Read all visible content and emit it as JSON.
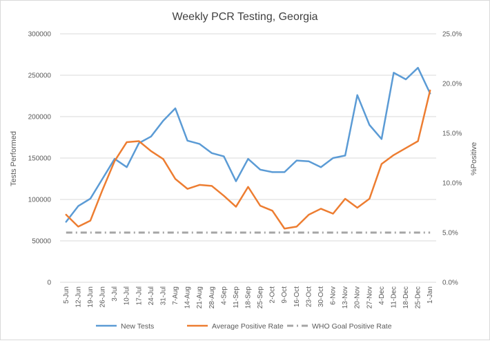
{
  "chart_data": {
    "type": "line",
    "title": "Weekly PCR Testing, Georgia",
    "xlabel": "",
    "ylabel": "Tests Performed",
    "y2label": "%Positive",
    "ylim": [
      0,
      300000
    ],
    "y2lim": [
      0,
      25
    ],
    "y_ticks": [
      "0",
      "50000",
      "100000",
      "150000",
      "200000",
      "250000",
      "300000"
    ],
    "y2_ticks": [
      "0.0%",
      "5.0%",
      "10.0%",
      "15.0%",
      "20.0%",
      "25.0%"
    ],
    "grid": true,
    "legend_position": "bottom",
    "categories": [
      "5-Jun",
      "12-Jun",
      "19-Jun",
      "26-Jun",
      "3-Jul",
      "10-Jul",
      "17-Jul",
      "24-Jul",
      "31-Jul",
      "7-Aug",
      "14-Aug",
      "21-Aug",
      "28-Aug",
      "4-Sep",
      "11-Sep",
      "18-Sep",
      "25-Sep",
      "2-Oct",
      "9-Oct",
      "16-Oct",
      "23-Oct",
      "30-Oct",
      "6-Nov",
      "13-Nov",
      "20-Nov",
      "27-Nov",
      "4-Dec",
      "11-Dec",
      "18-Dec",
      "25-Dec",
      "1-Jan"
    ],
    "series": [
      {
        "name": "New Tests",
        "axis": "left",
        "color": "#5b9bd5",
        "style": "solid",
        "values": [
          73000,
          92000,
          101000,
          125000,
          149000,
          139000,
          168000,
          176000,
          195000,
          210000,
          171000,
          167000,
          156000,
          152000,
          122000,
          149000,
          136000,
          133000,
          133000,
          147000,
          146000,
          139000,
          150000,
          153000,
          226000,
          190000,
          173000,
          253000,
          245000,
          259000,
          228000
        ]
      },
      {
        "name": "Average Positive Rate",
        "axis": "right",
        "color": "#ed7d31",
        "style": "solid",
        "values": [
          6.8,
          5.6,
          6.2,
          9.3,
          12.2,
          14.1,
          14.2,
          13.2,
          12.4,
          10.4,
          9.4,
          9.8,
          9.7,
          8.7,
          7.6,
          9.6,
          7.7,
          7.2,
          5.4,
          5.6,
          6.8,
          7.4,
          6.9,
          8.4,
          7.5,
          8.4,
          11.9,
          12.8,
          13.5,
          14.2,
          19.3
        ]
      },
      {
        "name": "WHO Goal Positive Rate",
        "axis": "right",
        "color": "#a5a5a5",
        "style": "dash-dot",
        "values": [
          5,
          5,
          5,
          5,
          5,
          5,
          5,
          5,
          5,
          5,
          5,
          5,
          5,
          5,
          5,
          5,
          5,
          5,
          5,
          5,
          5,
          5,
          5,
          5,
          5,
          5,
          5,
          5,
          5,
          5,
          5
        ]
      }
    ]
  }
}
